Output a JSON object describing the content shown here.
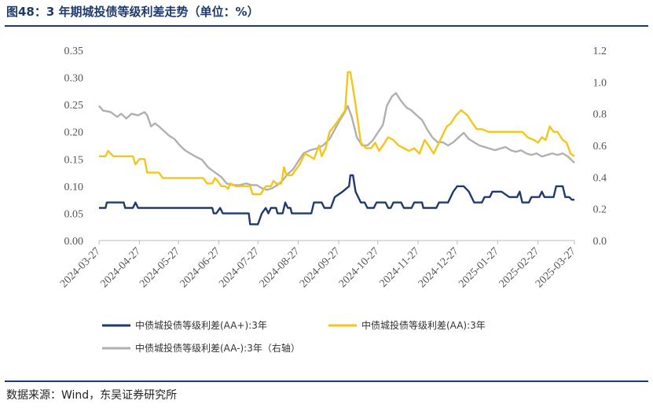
{
  "figure": {
    "title": "图48：3 年期城投债等级利差走势（单位：%）",
    "source": "数据来源：Wind，东吴证券研究所"
  },
  "colors": {
    "rule": "#1f3a6e",
    "aa_plus": "#1f3a6e",
    "aa": "#f5c518",
    "aa_minus": "#b0b0b0"
  },
  "chart_data": {
    "type": "line",
    "x_ticks": [
      "2024-03-27",
      "2024-04-27",
      "2024-05-27",
      "2024-06-27",
      "2024-07-27",
      "2024-08-27",
      "2024-09-27",
      "2024-10-27",
      "2024-11-27",
      "2024-12-27",
      "2025-01-27",
      "2025-02-27",
      "2025-03-27"
    ],
    "x_range": [
      "2024-03-27",
      "2025-03-27"
    ],
    "y_left": {
      "ticks": [
        "0.00",
        "0.05",
        "0.10",
        "0.15",
        "0.20",
        "0.25",
        "0.30",
        "0.35"
      ],
      "range": [
        0,
        0.35
      ]
    },
    "y_right": {
      "ticks": [
        "0.0",
        "0.2",
        "0.4",
        "0.6",
        "0.8",
        "1.0",
        "1.2"
      ],
      "range": [
        0,
        1.2
      ]
    },
    "grid": false,
    "legend_position": "bottom",
    "series": [
      {
        "name": "中债城投债等级利差(AA+):3年",
        "axis": "left",
        "color": "#1f3a6e",
        "points": [
          [
            "2024-03-27",
            0.06
          ],
          [
            "2024-04-01",
            0.06
          ],
          [
            "2024-04-02",
            0.07
          ],
          [
            "2024-04-15",
            0.07
          ],
          [
            "2024-04-16",
            0.06
          ],
          [
            "2024-04-22",
            0.06
          ],
          [
            "2024-04-24",
            0.07
          ],
          [
            "2024-04-26",
            0.06
          ],
          [
            "2024-06-22",
            0.06
          ],
          [
            "2024-06-23",
            0.05
          ],
          [
            "2024-06-25",
            0.05
          ],
          [
            "2024-06-28",
            0.06
          ],
          [
            "2024-06-30",
            0.05
          ],
          [
            "2024-07-20",
            0.05
          ],
          [
            "2024-07-21",
            0.03
          ],
          [
            "2024-07-27",
            0.03
          ],
          [
            "2024-07-30",
            0.05
          ],
          [
            "2024-08-02",
            0.06
          ],
          [
            "2024-08-04",
            0.05
          ],
          [
            "2024-08-06",
            0.06
          ],
          [
            "2024-08-10",
            0.06
          ],
          [
            "2024-08-11",
            0.05
          ],
          [
            "2024-08-15",
            0.05
          ],
          [
            "2024-08-17",
            0.07
          ],
          [
            "2024-08-19",
            0.06
          ],
          [
            "2024-08-21",
            0.06
          ],
          [
            "2024-08-22",
            0.05
          ],
          [
            "2024-09-06",
            0.05
          ],
          [
            "2024-09-08",
            0.07
          ],
          [
            "2024-09-14",
            0.07
          ],
          [
            "2024-09-16",
            0.06
          ],
          [
            "2024-09-21",
            0.06
          ],
          [
            "2024-09-24",
            0.08
          ],
          [
            "2024-09-30",
            0.09
          ],
          [
            "2024-10-05",
            0.1
          ],
          [
            "2024-10-06",
            0.12
          ],
          [
            "2024-10-08",
            0.12
          ],
          [
            "2024-10-10",
            0.09
          ],
          [
            "2024-10-14",
            0.07
          ],
          [
            "2024-10-17",
            0.07
          ],
          [
            "2024-10-19",
            0.06
          ],
          [
            "2024-10-24",
            0.06
          ],
          [
            "2024-10-26",
            0.07
          ],
          [
            "2024-11-02",
            0.07
          ],
          [
            "2024-11-04",
            0.06
          ],
          [
            "2024-11-06",
            0.06
          ],
          [
            "2024-11-08",
            0.07
          ],
          [
            "2024-11-14",
            0.07
          ],
          [
            "2024-11-16",
            0.06
          ],
          [
            "2024-11-22",
            0.06
          ],
          [
            "2024-11-24",
            0.07
          ],
          [
            "2024-11-30",
            0.07
          ],
          [
            "2024-12-01",
            0.06
          ],
          [
            "2024-12-11",
            0.06
          ],
          [
            "2024-12-13",
            0.07
          ],
          [
            "2024-12-20",
            0.07
          ],
          [
            "2024-12-24",
            0.09
          ],
          [
            "2024-12-27",
            0.1
          ],
          [
            "2025-01-01",
            0.1
          ],
          [
            "2025-01-05",
            0.09
          ],
          [
            "2025-01-09",
            0.07
          ],
          [
            "2025-01-15",
            0.07
          ],
          [
            "2025-01-17",
            0.08
          ],
          [
            "2025-01-21",
            0.08
          ],
          [
            "2025-01-23",
            0.09
          ],
          [
            "2025-01-30",
            0.09
          ],
          [
            "2025-02-05",
            0.08
          ],
          [
            "2025-02-11",
            0.08
          ],
          [
            "2025-02-13",
            0.09
          ],
          [
            "2025-02-15",
            0.07
          ],
          [
            "2025-02-20",
            0.07
          ],
          [
            "2025-02-22",
            0.08
          ],
          [
            "2025-02-28",
            0.08
          ],
          [
            "2025-03-02",
            0.09
          ],
          [
            "2025-03-04",
            0.08
          ],
          [
            "2025-03-11",
            0.08
          ],
          [
            "2025-03-13",
            0.1
          ],
          [
            "2025-03-18",
            0.1
          ],
          [
            "2025-03-20",
            0.08
          ],
          [
            "2025-03-23",
            0.08
          ],
          [
            "2025-03-25",
            0.075
          ],
          [
            "2025-03-27",
            0.075
          ]
        ]
      },
      {
        "name": "中债城投债等级利差(AA):3年",
        "axis": "left",
        "color": "#f5c518",
        "points": [
          [
            "2024-03-27",
            0.155
          ],
          [
            "2024-04-01",
            0.155
          ],
          [
            "2024-04-03",
            0.165
          ],
          [
            "2024-04-07",
            0.155
          ],
          [
            "2024-04-22",
            0.155
          ],
          [
            "2024-04-24",
            0.14
          ],
          [
            "2024-04-27",
            0.15
          ],
          [
            "2024-05-01",
            0.15
          ],
          [
            "2024-05-03",
            0.125
          ],
          [
            "2024-05-12",
            0.125
          ],
          [
            "2024-05-15",
            0.115
          ],
          [
            "2024-06-15",
            0.115
          ],
          [
            "2024-06-18",
            0.105
          ],
          [
            "2024-06-22",
            0.105
          ],
          [
            "2024-06-24",
            0.115
          ],
          [
            "2024-06-26",
            0.11
          ],
          [
            "2024-06-29",
            0.1
          ],
          [
            "2024-07-02",
            0.1
          ],
          [
            "2024-07-04",
            0.095
          ],
          [
            "2024-07-06",
            0.105
          ],
          [
            "2024-07-10",
            0.1
          ],
          [
            "2024-07-21",
            0.1
          ],
          [
            "2024-07-23",
            0.085
          ],
          [
            "2024-07-29",
            0.085
          ],
          [
            "2024-08-02",
            0.1
          ],
          [
            "2024-08-06",
            0.1
          ],
          [
            "2024-08-08",
            0.11
          ],
          [
            "2024-08-10",
            0.105
          ],
          [
            "2024-08-14",
            0.105
          ],
          [
            "2024-08-16",
            0.135
          ],
          [
            "2024-08-18",
            0.12
          ],
          [
            "2024-08-22",
            0.12
          ],
          [
            "2024-08-25",
            0.13
          ],
          [
            "2024-08-28",
            0.14
          ],
          [
            "2024-09-01",
            0.16
          ],
          [
            "2024-09-05",
            0.155
          ],
          [
            "2024-09-08",
            0.15
          ],
          [
            "2024-09-12",
            0.175
          ],
          [
            "2024-09-14",
            0.155
          ],
          [
            "2024-09-17",
            0.17
          ],
          [
            "2024-09-20",
            0.2
          ],
          [
            "2024-09-25",
            0.215
          ],
          [
            "2024-10-02",
            0.24
          ],
          [
            "2024-10-04",
            0.31
          ],
          [
            "2024-10-06",
            0.31
          ],
          [
            "2024-10-10",
            0.25
          ],
          [
            "2024-10-14",
            0.18
          ],
          [
            "2024-10-18",
            0.17
          ],
          [
            "2024-10-22",
            0.17
          ],
          [
            "2024-10-25",
            0.18
          ],
          [
            "2024-10-28",
            0.165
          ],
          [
            "2024-10-31",
            0.175
          ],
          [
            "2024-11-04",
            0.19
          ],
          [
            "2024-11-08",
            0.185
          ],
          [
            "2024-11-12",
            0.175
          ],
          [
            "2024-11-16",
            0.17
          ],
          [
            "2024-11-20",
            0.165
          ],
          [
            "2024-11-24",
            0.17
          ],
          [
            "2024-11-28",
            0.16
          ],
          [
            "2024-12-02",
            0.185
          ],
          [
            "2024-12-05",
            0.175
          ],
          [
            "2024-12-09",
            0.16
          ],
          [
            "2024-12-13",
            0.18
          ],
          [
            "2024-12-16",
            0.195
          ],
          [
            "2024-12-19",
            0.21
          ],
          [
            "2024-12-22",
            0.215
          ],
          [
            "2024-12-26",
            0.23
          ],
          [
            "2024-12-30",
            0.24
          ],
          [
            "2025-01-04",
            0.23
          ],
          [
            "2025-01-08",
            0.215
          ],
          [
            "2025-01-11",
            0.205
          ],
          [
            "2025-01-15",
            0.205
          ],
          [
            "2025-01-20",
            0.2
          ],
          [
            "2025-02-15",
            0.2
          ],
          [
            "2025-02-19",
            0.19
          ],
          [
            "2025-02-24",
            0.185
          ],
          [
            "2025-02-27",
            0.18
          ],
          [
            "2025-03-02",
            0.19
          ],
          [
            "2025-03-05",
            0.185
          ],
          [
            "2025-03-08",
            0.21
          ],
          [
            "2025-03-11",
            0.2
          ],
          [
            "2025-03-14",
            0.2
          ],
          [
            "2025-03-18",
            0.185
          ],
          [
            "2025-03-21",
            0.18
          ],
          [
            "2025-03-24",
            0.16
          ],
          [
            "2025-03-27",
            0.155
          ]
        ]
      },
      {
        "name": "中债城投债等级利差(AA-):3年（右轴）",
        "axis": "right",
        "color": "#b0b0b0",
        "points": [
          [
            "2024-03-27",
            0.85
          ],
          [
            "2024-03-30",
            0.82
          ],
          [
            "2024-04-05",
            0.81
          ],
          [
            "2024-04-10",
            0.78
          ],
          [
            "2024-04-13",
            0.8
          ],
          [
            "2024-04-17",
            0.77
          ],
          [
            "2024-04-21",
            0.8
          ],
          [
            "2024-04-26",
            0.79
          ],
          [
            "2024-05-01",
            0.81
          ],
          [
            "2024-05-03",
            0.79
          ],
          [
            "2024-05-06",
            0.72
          ],
          [
            "2024-05-09",
            0.74
          ],
          [
            "2024-05-12",
            0.72
          ],
          [
            "2024-05-16",
            0.69
          ],
          [
            "2024-05-20",
            0.66
          ],
          [
            "2024-05-24",
            0.64
          ],
          [
            "2024-05-28",
            0.6
          ],
          [
            "2024-06-01",
            0.57
          ],
          [
            "2024-06-05",
            0.55
          ],
          [
            "2024-06-09",
            0.53
          ],
          [
            "2024-06-14",
            0.51
          ],
          [
            "2024-06-19",
            0.46
          ],
          [
            "2024-06-24",
            0.43
          ],
          [
            "2024-06-29",
            0.4
          ],
          [
            "2024-07-03",
            0.36
          ],
          [
            "2024-07-08",
            0.35
          ],
          [
            "2024-07-13",
            0.35
          ],
          [
            "2024-07-18",
            0.36
          ],
          [
            "2024-07-22",
            0.35
          ],
          [
            "2024-07-26",
            0.35
          ],
          [
            "2024-07-30",
            0.33
          ],
          [
            "2024-08-03",
            0.32
          ],
          [
            "2024-08-07",
            0.33
          ],
          [
            "2024-08-11",
            0.35
          ],
          [
            "2024-08-15",
            0.38
          ],
          [
            "2024-08-19",
            0.42
          ],
          [
            "2024-08-23",
            0.45
          ],
          [
            "2024-08-27",
            0.5
          ],
          [
            "2024-08-31",
            0.55
          ],
          [
            "2024-09-05",
            0.57
          ],
          [
            "2024-09-10",
            0.58
          ],
          [
            "2024-09-15",
            0.6
          ],
          [
            "2024-09-20",
            0.64
          ],
          [
            "2024-09-24",
            0.7
          ],
          [
            "2024-09-28",
            0.76
          ],
          [
            "2024-10-01",
            0.8
          ],
          [
            "2024-10-04",
            0.85
          ],
          [
            "2024-10-07",
            0.78
          ],
          [
            "2024-10-11",
            0.65
          ],
          [
            "2024-10-15",
            0.6
          ],
          [
            "2024-10-19",
            0.6
          ],
          [
            "2024-10-23",
            0.63
          ],
          [
            "2024-10-27",
            0.68
          ],
          [
            "2024-10-31",
            0.73
          ],
          [
            "2024-11-03",
            0.85
          ],
          [
            "2024-11-07",
            0.91
          ],
          [
            "2024-11-10",
            0.93
          ],
          [
            "2024-11-14",
            0.88
          ],
          [
            "2024-11-18",
            0.84
          ],
          [
            "2024-11-22",
            0.82
          ],
          [
            "2024-11-26",
            0.79
          ],
          [
            "2024-11-30",
            0.76
          ],
          [
            "2024-12-04",
            0.7
          ],
          [
            "2024-12-08",
            0.65
          ],
          [
            "2024-12-12",
            0.62
          ],
          [
            "2024-12-16",
            0.62
          ],
          [
            "2024-12-20",
            0.6
          ],
          [
            "2024-12-24",
            0.62
          ],
          [
            "2024-12-28",
            0.65
          ],
          [
            "2025-01-01",
            0.68
          ],
          [
            "2025-01-05",
            0.64
          ],
          [
            "2025-01-09",
            0.62
          ],
          [
            "2025-01-13",
            0.6
          ],
          [
            "2025-01-17",
            0.59
          ],
          [
            "2025-01-21",
            0.58
          ],
          [
            "2025-01-25",
            0.57
          ],
          [
            "2025-01-29",
            0.58
          ],
          [
            "2025-02-02",
            0.59
          ],
          [
            "2025-02-06",
            0.57
          ],
          [
            "2025-02-10",
            0.56
          ],
          [
            "2025-02-14",
            0.57
          ],
          [
            "2025-02-18",
            0.55
          ],
          [
            "2025-02-22",
            0.54
          ],
          [
            "2025-02-26",
            0.55
          ],
          [
            "2025-03-02",
            0.53
          ],
          [
            "2025-03-06",
            0.54
          ],
          [
            "2025-03-10",
            0.55
          ],
          [
            "2025-03-14",
            0.54
          ],
          [
            "2025-03-18",
            0.55
          ],
          [
            "2025-03-22",
            0.53
          ],
          [
            "2025-03-27",
            0.49
          ]
        ]
      }
    ]
  }
}
